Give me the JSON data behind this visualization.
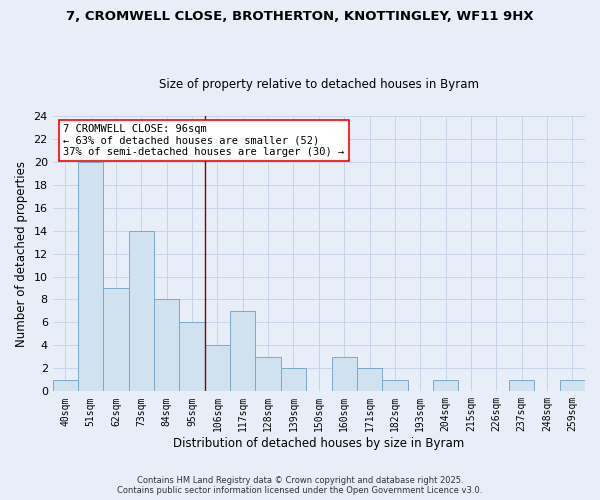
{
  "title_line1": "7, CROMWELL CLOSE, BROTHERTON, KNOTTINGLEY, WF11 9HX",
  "title_line2": "Size of property relative to detached houses in Byram",
  "xlabel": "Distribution of detached houses by size in Byram",
  "ylabel": "Number of detached properties",
  "categories": [
    "40sqm",
    "51sqm",
    "62sqm",
    "73sqm",
    "84sqm",
    "95sqm",
    "106sqm",
    "117sqm",
    "128sqm",
    "139sqm",
    "150sqm",
    "160sqm",
    "171sqm",
    "182sqm",
    "193sqm",
    "204sqm",
    "215sqm",
    "226sqm",
    "237sqm",
    "248sqm",
    "259sqm"
  ],
  "values": [
    1,
    20,
    9,
    14,
    8,
    6,
    4,
    7,
    3,
    2,
    0,
    3,
    2,
    1,
    0,
    1,
    0,
    0,
    1,
    0,
    1
  ],
  "bar_color": "#d0e2f0",
  "bar_edge_color": "#7aaac8",
  "ylim": [
    0,
    24
  ],
  "yticks": [
    0,
    2,
    4,
    6,
    8,
    10,
    12,
    14,
    16,
    18,
    20,
    22,
    24
  ],
  "red_line_x": 5.5,
  "annotation_text": "7 CROMWELL CLOSE: 96sqm\n← 63% of detached houses are smaller (52)\n37% of semi-detached houses are larger (30) →",
  "footer_line1": "Contains HM Land Registry data © Crown copyright and database right 2025.",
  "footer_line2": "Contains public sector information licensed under the Open Government Licence v3.0.",
  "background_color": "#e8eef8",
  "plot_background": "#e8eef8",
  "grid_color": "#c8d4e8"
}
